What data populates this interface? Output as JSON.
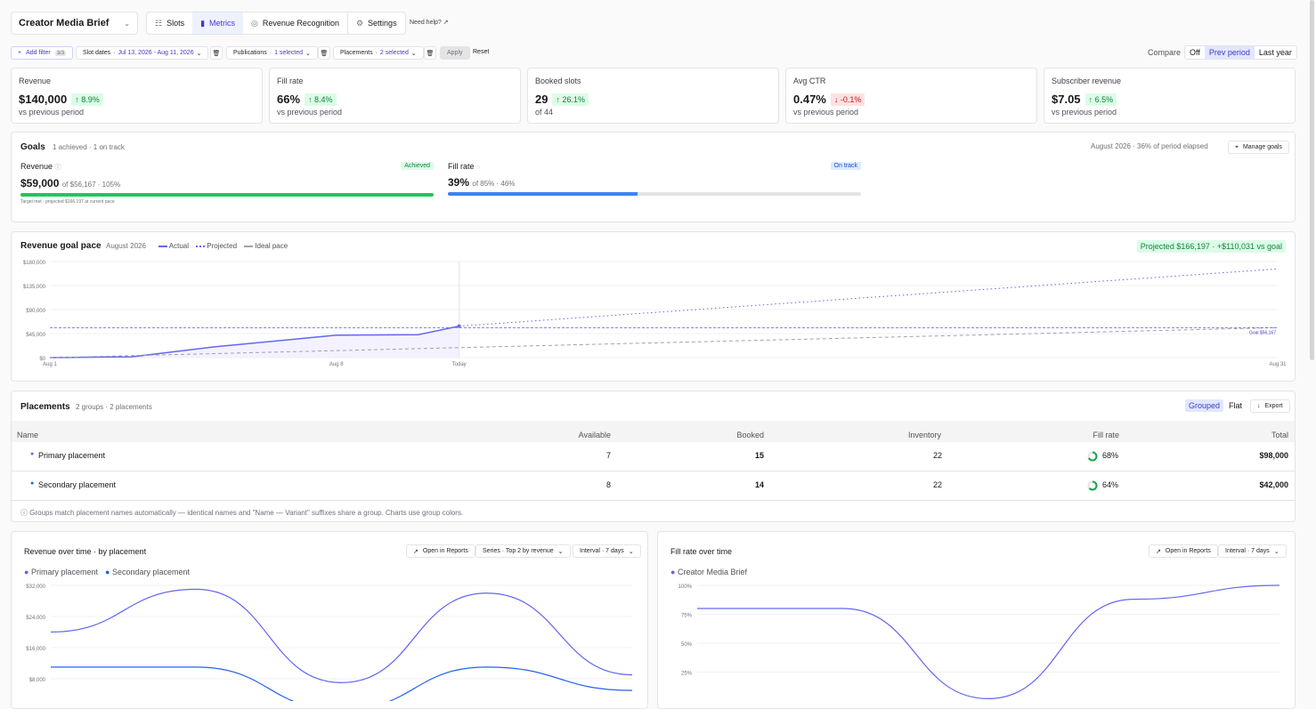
{
  "brief_selector": "Creator Media Brief",
  "nav": {
    "tabs": [
      "Slots",
      "Metrics",
      "Revenue Recognition",
      "Settings"
    ],
    "help": "Need help?"
  },
  "filters": {
    "add": "Add filter",
    "add_count": "3/3",
    "slot_dates_label": "Slot dates",
    "slot_dates_value": "Jul 13, 2026 - Aug 11, 2026",
    "publications_label": "Publications",
    "publications_value": "1 selected",
    "placements_label": "Placements",
    "placements_value": "2 selected",
    "apply": "Apply",
    "reset": "Reset"
  },
  "compare": {
    "label": "Compare",
    "options": [
      "Off",
      "Prev period",
      "Last year"
    ],
    "selected": "Prev period"
  },
  "kpis": [
    {
      "title": "Revenue",
      "value": "$140,000",
      "delta": "8.9%",
      "dir": "up",
      "sub": "vs previous period"
    },
    {
      "title": "Fill rate",
      "value": "66%",
      "delta": "8.4%",
      "dir": "up",
      "sub": "vs previous period"
    },
    {
      "title": "Booked slots",
      "value": "29",
      "delta": "26.1%",
      "dir": "up",
      "sub": "of 44"
    },
    {
      "title": "Avg CTR",
      "value": "0.47%",
      "delta": "-0.1%",
      "dir": "down",
      "sub": "vs previous period"
    },
    {
      "title": "Subscriber revenue",
      "value": "$7.05",
      "delta": "6.5%",
      "dir": "up",
      "sub": "vs previous period"
    }
  ],
  "goals": {
    "title": "Goals",
    "summary": "1 achieved · 1 on track",
    "period": "August 2026 · 36% of period elapsed",
    "manage": "Manage goals",
    "items": [
      {
        "name": "Revenue",
        "status": "Achieved",
        "value": "$59,000",
        "target": "of $56,167 · 105%",
        "progress": 1.0,
        "note": "Target met · projected $166,197 at current pace"
      },
      {
        "name": "Fill rate",
        "status": "On track",
        "value": "39%",
        "target": "of 85% · 46%",
        "progress": 0.46,
        "note": ""
      }
    ]
  },
  "pace": {
    "title": "Revenue goal pace",
    "period": "August 2026",
    "legend": [
      "Actual",
      "Projected",
      "Ideal pace"
    ],
    "badge": "Projected $166,197 · +$110,031 vs goal",
    "goal_label": "Goal $56,167"
  },
  "placements": {
    "title": "Placements",
    "summary": "2 groups · 2 placements",
    "views": [
      "Grouped",
      "Flat"
    ],
    "export": "Export",
    "columns": [
      "Name",
      "Available",
      "Booked",
      "Inventory",
      "Fill rate",
      "Total"
    ],
    "rows": [
      {
        "name": "Primary placement",
        "available": "7",
        "booked": "15",
        "inventory": "22",
        "fill": "68%",
        "fill_value": 0.68,
        "total": "$98,000",
        "color": "#6366f1"
      },
      {
        "name": "Secondary placement",
        "available": "8",
        "booked": "14",
        "inventory": "22",
        "fill": "64%",
        "fill_value": 0.64,
        "total": "$42,000",
        "color": "#2563eb"
      }
    ],
    "footnote": "Groups match placement names automatically — identical names and \"Name — Variant\" suffixes share a group. Charts use group colors."
  },
  "rev_time": {
    "title": "Revenue over time · by placement",
    "open": "Open in Reports",
    "series_btn": "Series · Top 2 by revenue",
    "interval": "Interval · 7 days"
  },
  "fill_time": {
    "title": "Fill rate over time",
    "open": "Open in Reports",
    "interval": "Interval · 7 days"
  },
  "colors": {
    "accent": "#6366f1",
    "blue": "#2563eb",
    "green": "#22c55e"
  },
  "chart_data": [
    {
      "type": "line",
      "title": "Revenue goal pace",
      "x": [
        "Aug 1",
        "Aug 3",
        "Aug 5",
        "Aug 8",
        "Aug 10",
        "Aug 11"
      ],
      "series": [
        {
          "name": "Actual",
          "values": [
            0,
            1500,
            20000,
            42000,
            43000,
            59000
          ]
        }
      ],
      "projected": {
        "x": [
          "Aug 11",
          "Aug 31"
        ],
        "values": [
          59000,
          166197
        ]
      },
      "ideal_pace": {
        "x": [
          "Aug 1",
          "Aug 31"
        ],
        "values": [
          0,
          56167
        ]
      },
      "goal": 56167,
      "ylim": [
        0,
        180000
      ],
      "yticks": [
        "$0",
        "$45,000",
        "$90,000",
        "$135,000",
        "$180,000"
      ],
      "xticks": [
        "Aug 1",
        "Aug 8",
        "Today",
        "Aug 31"
      ]
    },
    {
      "type": "line",
      "title": "Revenue over time · by placement",
      "series": [
        {
          "name": "Primary placement",
          "values": [
            20000,
            31000,
            7000,
            30000,
            9000
          ]
        },
        {
          "name": "Secondary placement",
          "values": [
            11000,
            11000,
            0,
            11000,
            5000
          ]
        }
      ],
      "ylim": [
        0,
        32000
      ],
      "yticks": [
        "$8,000",
        "$16,000",
        "$24,000",
        "$32,000"
      ]
    },
    {
      "type": "line",
      "title": "Fill rate over time",
      "series": [
        {
          "name": "Creator Media Brief",
          "values": [
            0.8,
            0.8,
            0.02,
            0.88,
            1.0
          ]
        }
      ],
      "ylim": [
        0,
        1
      ],
      "yticks": [
        "25%",
        "50%",
        "75%",
        "100%"
      ]
    }
  ]
}
